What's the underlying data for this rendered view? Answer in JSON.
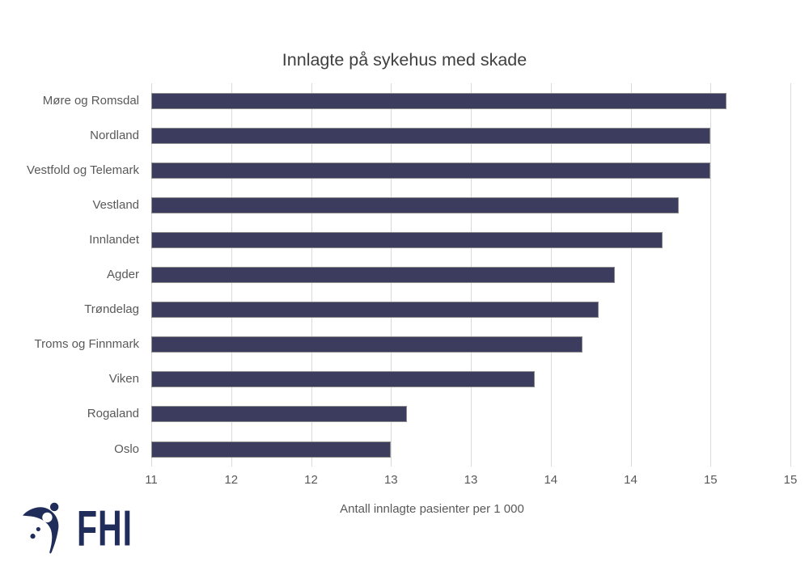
{
  "chart_data": {
    "type": "bar",
    "orientation": "horizontal",
    "title": "Innlagte på sykehus med skade",
    "xlabel": "Antall innlagte pasienter per 1 000",
    "ylabel": "",
    "categories": [
      "Møre og Romsdal",
      "Nordland",
      "Vestfold og Telemark",
      "Vestland",
      "Innlandet",
      "Agder",
      "Trøndelag",
      "Troms og Finnmark",
      "Viken",
      "Rogaland",
      "Oslo"
    ],
    "values": [
      14.6,
      14.5,
      14.5,
      14.3,
      14.2,
      13.9,
      13.8,
      13.7,
      13.4,
      12.6,
      12.5
    ],
    "xlim": [
      11,
      15
    ],
    "xtick_values": [
      11,
      11.5,
      12,
      12.5,
      13,
      13.5,
      14,
      14.5,
      15
    ],
    "xtick_labels": [
      "11",
      "12",
      "12",
      "13",
      "13",
      "14",
      "14",
      "15",
      "15"
    ],
    "grid": true,
    "legend": "none",
    "bar_color": "#3B3C5E",
    "bar_border_color": "#8A8A8A",
    "gridline_color": "#D9D9D9",
    "title_color": "#404040",
    "axis_text_color": "#595959"
  },
  "logo": {
    "brand": "FHI",
    "color": "#202C5A"
  }
}
